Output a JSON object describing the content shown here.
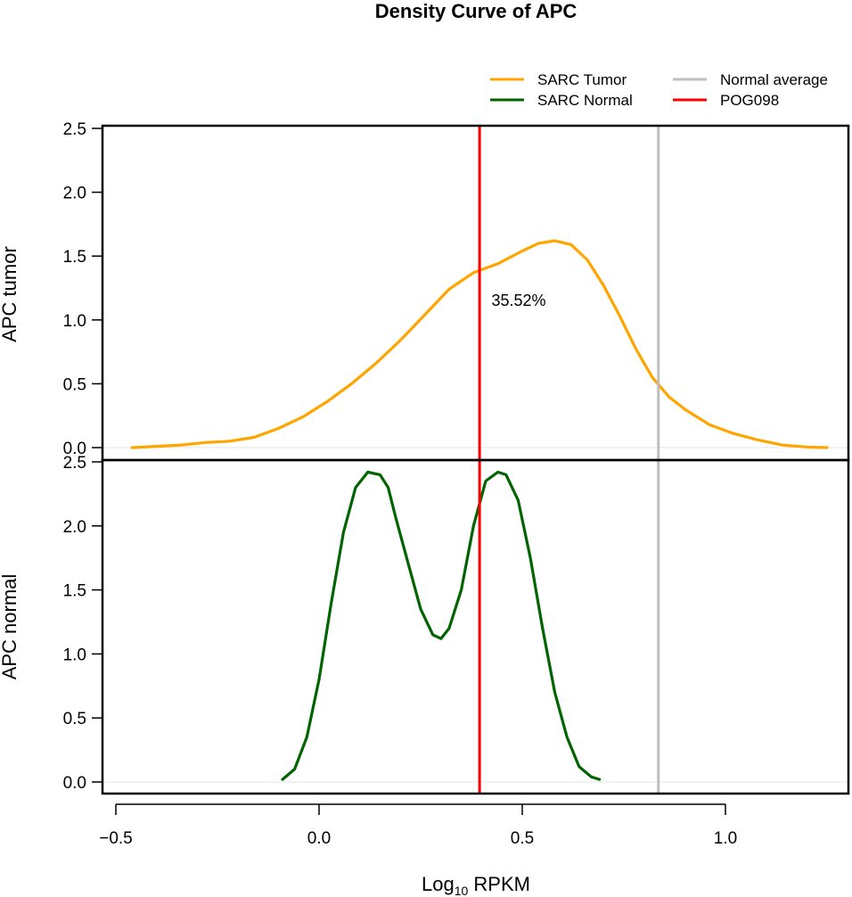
{
  "chart_data": {
    "type": "line",
    "title": "Density Curve of  APC",
    "xlabel": {
      "base": "Log",
      "sub": "10",
      "rest": " RPKM"
    },
    "xlim": [
      -0.55,
      1.3
    ],
    "x_ticks": [
      -0.5,
      0.0,
      0.5,
      1.0
    ],
    "x_tick_labels": [
      "−0.5",
      "0.0",
      "0.5",
      "1.0"
    ],
    "panels": [
      {
        "ylabel": "APC  tumor",
        "ylim": [
          0,
          2.5
        ],
        "y_ticks": [
          0.0,
          0.5,
          1.0,
          1.5,
          2.0,
          2.5
        ],
        "y_tick_labels": [
          "0.0",
          "0.5",
          "1.0",
          "1.5",
          "2.0",
          "2.5"
        ],
        "series": {
          "name": "SARC  Tumor",
          "color": "#FFA500",
          "x": [
            -0.46,
            -0.4,
            -0.34,
            -0.28,
            -0.22,
            -0.16,
            -0.1,
            -0.04,
            0.02,
            0.08,
            0.14,
            0.2,
            0.26,
            0.32,
            0.38,
            0.44,
            0.5,
            0.54,
            0.58,
            0.62,
            0.66,
            0.7,
            0.74,
            0.78,
            0.82,
            0.86,
            0.9,
            0.96,
            1.02,
            1.08,
            1.14,
            1.2,
            1.25
          ],
          "y": [
            0.0,
            0.01,
            0.02,
            0.04,
            0.05,
            0.08,
            0.15,
            0.24,
            0.36,
            0.5,
            0.66,
            0.84,
            1.04,
            1.24,
            1.37,
            1.44,
            1.54,
            1.6,
            1.62,
            1.59,
            1.47,
            1.27,
            1.03,
            0.77,
            0.55,
            0.4,
            0.3,
            0.18,
            0.11,
            0.06,
            0.02,
            0.005,
            0.0
          ]
        }
      },
      {
        "ylabel": "APC  normal",
        "ylim": [
          0,
          2.5
        ],
        "y_ticks": [
          0.0,
          0.5,
          1.0,
          1.5,
          2.0,
          2.5
        ],
        "y_tick_labels": [
          "0.0",
          "0.5",
          "1.0",
          "1.5",
          "2.0",
          "2.5"
        ],
        "series": {
          "name": "SARC  Normal",
          "color": "#006400",
          "x": [
            -0.09,
            -0.06,
            -0.03,
            0.0,
            0.03,
            0.06,
            0.09,
            0.12,
            0.15,
            0.17,
            0.19,
            0.22,
            0.25,
            0.28,
            0.3,
            0.32,
            0.35,
            0.38,
            0.41,
            0.44,
            0.46,
            0.49,
            0.52,
            0.55,
            0.58,
            0.61,
            0.64,
            0.67,
            0.69
          ],
          "y": [
            0.02,
            0.1,
            0.35,
            0.8,
            1.4,
            1.95,
            2.3,
            2.42,
            2.4,
            2.3,
            2.05,
            1.7,
            1.35,
            1.15,
            1.12,
            1.2,
            1.5,
            2.0,
            2.35,
            2.42,
            2.4,
            2.2,
            1.75,
            1.2,
            0.7,
            0.35,
            0.12,
            0.04,
            0.02
          ]
        }
      }
    ],
    "vlines": [
      {
        "name": "Normal  average",
        "x": 0.835,
        "color": "#BEBEBE"
      },
      {
        "name": "POG098",
        "x": 0.395,
        "color": "#FF0000"
      }
    ],
    "annotation": {
      "text": "35.52%",
      "x": 0.42,
      "y": 1.2,
      "color": "#FF0000"
    },
    "legend": {
      "placement": "top-right",
      "items": [
        {
          "label": "SARC  Tumor",
          "color": "#FFA500"
        },
        {
          "label": "SARC  Normal",
          "color": "#006400"
        },
        {
          "label": "Normal  average",
          "color": "#BEBEBE"
        },
        {
          "label": "POG098",
          "color": "#FF0000"
        }
      ]
    },
    "grid": "faint baseline at y=0"
  }
}
